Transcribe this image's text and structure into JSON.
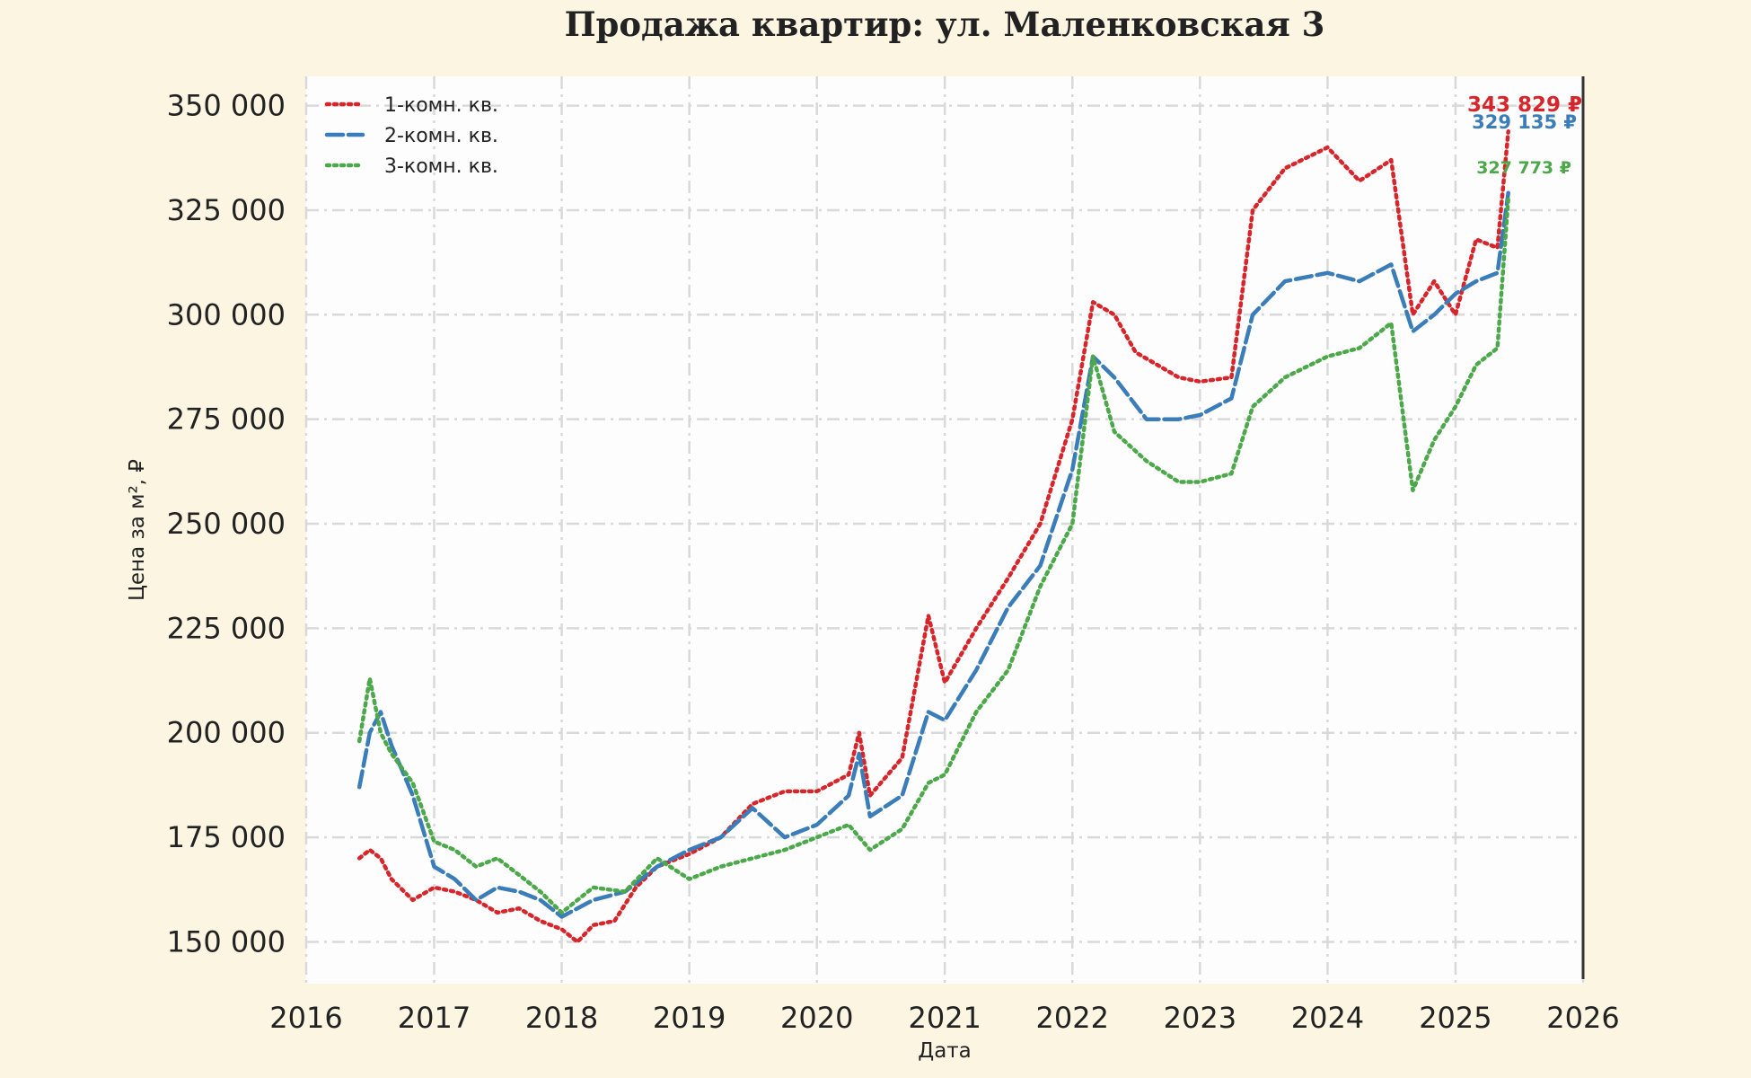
{
  "chart_data": {
    "type": "line",
    "title": "Продажа квартир: ул. Маленковская 3",
    "xlabel": "Дата",
    "ylabel": "Цена за м², ₽",
    "xlim": [
      "2016-01-01",
      "2026-01-01"
    ],
    "ylim": [
      140000,
      357000
    ],
    "x_ticks": [
      "2016",
      "2017",
      "2018",
      "2019",
      "2020",
      "2021",
      "2022",
      "2023",
      "2024",
      "2025",
      "2026"
    ],
    "y_ticks": [
      150000,
      175000,
      200000,
      225000,
      250000,
      275000,
      300000,
      325000,
      350000
    ],
    "y_tick_labels": [
      "150 000",
      "175 000",
      "200 000",
      "225 000",
      "250 000",
      "275 000",
      "300 000",
      "325 000",
      "350 000"
    ],
    "grid": true,
    "legend_position": "top-left",
    "series": [
      {
        "name": "1-комн. кв.",
        "color": "#d7262b",
        "style": "dotted",
        "end_label": "343 829 ₽",
        "points": [
          [
            "2016-06-01",
            170000
          ],
          [
            "2016-07-01",
            172000
          ],
          [
            "2016-08-01",
            170000
          ],
          [
            "2016-09-01",
            165000
          ],
          [
            "2016-11-01",
            160000
          ],
          [
            "2017-01-01",
            163000
          ],
          [
            "2017-03-01",
            162000
          ],
          [
            "2017-05-01",
            160000
          ],
          [
            "2017-07-01",
            157000
          ],
          [
            "2017-09-01",
            158000
          ],
          [
            "2017-11-01",
            155000
          ],
          [
            "2018-01-01",
            153000
          ],
          [
            "2018-02-15",
            150000
          ],
          [
            "2018-04-01",
            154000
          ],
          [
            "2018-06-01",
            155000
          ],
          [
            "2018-08-01",
            163000
          ],
          [
            "2018-10-01",
            168000
          ],
          [
            "2019-01-01",
            171000
          ],
          [
            "2019-04-01",
            175000
          ],
          [
            "2019-07-01",
            183000
          ],
          [
            "2019-10-01",
            186000
          ],
          [
            "2020-01-01",
            186000
          ],
          [
            "2020-04-01",
            190000
          ],
          [
            "2020-05-01",
            200000
          ],
          [
            "2020-06-01",
            185000
          ],
          [
            "2020-09-01",
            194000
          ],
          [
            "2020-11-15",
            228000
          ],
          [
            "2021-01-01",
            212000
          ],
          [
            "2021-04-01",
            225000
          ],
          [
            "2021-07-01",
            237000
          ],
          [
            "2021-10-01",
            250000
          ],
          [
            "2022-01-01",
            275000
          ],
          [
            "2022-03-01",
            303000
          ],
          [
            "2022-05-01",
            300000
          ],
          [
            "2022-07-01",
            291000
          ],
          [
            "2022-09-01",
            288000
          ],
          [
            "2022-11-01",
            285000
          ],
          [
            "2023-01-01",
            284000
          ],
          [
            "2023-04-01",
            285000
          ],
          [
            "2023-06-01",
            325000
          ],
          [
            "2023-09-01",
            335000
          ],
          [
            "2024-01-01",
            340000
          ],
          [
            "2024-04-01",
            332000
          ],
          [
            "2024-07-01",
            337000
          ],
          [
            "2024-09-01",
            300000
          ],
          [
            "2024-11-01",
            308000
          ],
          [
            "2025-01-01",
            300000
          ],
          [
            "2025-03-01",
            318000
          ],
          [
            "2025-05-01",
            316000
          ],
          [
            "2025-06-01",
            343829
          ]
        ]
      },
      {
        "name": "2-комн. кв.",
        "color": "#3a7db8",
        "style": "dashed",
        "end_label": "329 135 ₽",
        "points": [
          [
            "2016-06-01",
            187000
          ],
          [
            "2016-07-01",
            200000
          ],
          [
            "2016-08-01",
            205000
          ],
          [
            "2016-09-01",
            197000
          ],
          [
            "2016-11-01",
            185000
          ],
          [
            "2017-01-01",
            168000
          ],
          [
            "2017-03-01",
            165000
          ],
          [
            "2017-05-01",
            160000
          ],
          [
            "2017-07-01",
            163000
          ],
          [
            "2017-09-01",
            162000
          ],
          [
            "2017-11-01",
            160000
          ],
          [
            "2018-01-01",
            156000
          ],
          [
            "2018-04-01",
            160000
          ],
          [
            "2018-07-01",
            162000
          ],
          [
            "2018-10-01",
            168000
          ],
          [
            "2019-01-01",
            172000
          ],
          [
            "2019-04-01",
            175000
          ],
          [
            "2019-07-01",
            182000
          ],
          [
            "2019-10-01",
            175000
          ],
          [
            "2020-01-01",
            178000
          ],
          [
            "2020-04-01",
            185000
          ],
          [
            "2020-05-01",
            195000
          ],
          [
            "2020-06-01",
            180000
          ],
          [
            "2020-09-01",
            185000
          ],
          [
            "2020-11-15",
            205000
          ],
          [
            "2021-01-01",
            203000
          ],
          [
            "2021-04-01",
            215000
          ],
          [
            "2021-07-01",
            230000
          ],
          [
            "2021-10-01",
            240000
          ],
          [
            "2022-01-01",
            263000
          ],
          [
            "2022-03-01",
            290000
          ],
          [
            "2022-05-01",
            285000
          ],
          [
            "2022-08-01",
            275000
          ],
          [
            "2022-11-01",
            275000
          ],
          [
            "2023-01-01",
            276000
          ],
          [
            "2023-04-01",
            280000
          ],
          [
            "2023-06-01",
            300000
          ],
          [
            "2023-09-01",
            308000
          ],
          [
            "2024-01-01",
            310000
          ],
          [
            "2024-04-01",
            308000
          ],
          [
            "2024-07-01",
            312000
          ],
          [
            "2024-09-01",
            296000
          ],
          [
            "2024-11-01",
            300000
          ],
          [
            "2025-01-01",
            305000
          ],
          [
            "2025-03-01",
            308000
          ],
          [
            "2025-05-01",
            310000
          ],
          [
            "2025-06-01",
            329135
          ]
        ]
      },
      {
        "name": "3-комн. кв.",
        "color": "#4ca84a",
        "style": "dotted",
        "end_label": "327 773 ₽",
        "points": [
          [
            "2016-06-01",
            198000
          ],
          [
            "2016-07-01",
            213000
          ],
          [
            "2016-08-01",
            200000
          ],
          [
            "2016-09-01",
            195000
          ],
          [
            "2016-11-01",
            188000
          ],
          [
            "2017-01-01",
            174000
          ],
          [
            "2017-03-01",
            172000
          ],
          [
            "2017-05-01",
            168000
          ],
          [
            "2017-07-01",
            170000
          ],
          [
            "2017-09-01",
            166000
          ],
          [
            "2017-11-01",
            162000
          ],
          [
            "2018-01-01",
            157000
          ],
          [
            "2018-04-01",
            163000
          ],
          [
            "2018-07-01",
            162000
          ],
          [
            "2018-10-01",
            170000
          ],
          [
            "2019-01-01",
            165000
          ],
          [
            "2019-04-01",
            168000
          ],
          [
            "2019-07-01",
            170000
          ],
          [
            "2019-10-01",
            172000
          ],
          [
            "2020-01-01",
            175000
          ],
          [
            "2020-04-01",
            178000
          ],
          [
            "2020-06-01",
            172000
          ],
          [
            "2020-09-01",
            177000
          ],
          [
            "2020-11-15",
            188000
          ],
          [
            "2021-01-01",
            190000
          ],
          [
            "2021-04-01",
            205000
          ],
          [
            "2021-07-01",
            215000
          ],
          [
            "2021-10-01",
            235000
          ],
          [
            "2022-01-01",
            250000
          ],
          [
            "2022-03-01",
            290000
          ],
          [
            "2022-05-01",
            272000
          ],
          [
            "2022-08-01",
            265000
          ],
          [
            "2022-11-01",
            260000
          ],
          [
            "2023-01-01",
            260000
          ],
          [
            "2023-04-01",
            262000
          ],
          [
            "2023-06-01",
            278000
          ],
          [
            "2023-09-01",
            285000
          ],
          [
            "2024-01-01",
            290000
          ],
          [
            "2024-04-01",
            292000
          ],
          [
            "2024-07-01",
            298000
          ],
          [
            "2024-09-01",
            258000
          ],
          [
            "2024-11-01",
            270000
          ],
          [
            "2025-01-01",
            278000
          ],
          [
            "2025-03-01",
            288000
          ],
          [
            "2025-05-01",
            292000
          ],
          [
            "2025-06-01",
            327773
          ]
        ]
      }
    ]
  }
}
